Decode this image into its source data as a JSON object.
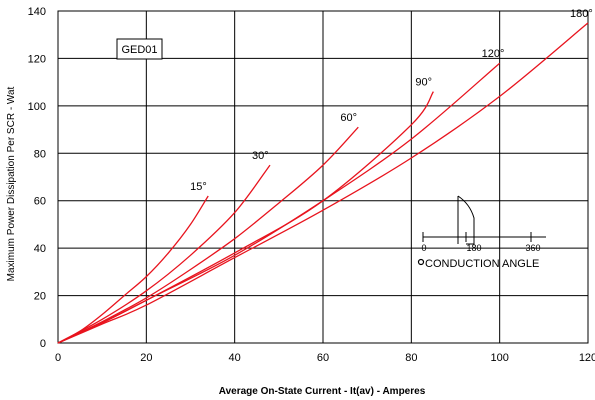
{
  "chart_data": {
    "type": "line",
    "xlabel": "Average On-State Current - It(av) - Amperes",
    "ylabel": "Maximum Power Dissipation Per SCR - Wat",
    "xlim": [
      0,
      120
    ],
    "ylim": [
      0,
      140
    ],
    "x_ticks": [
      "0",
      "20",
      "40",
      "60",
      "80",
      "100",
      "120"
    ],
    "y_ticks": [
      "0",
      "20",
      "40",
      "60",
      "80",
      "100",
      "120",
      "140"
    ],
    "grid": true,
    "series": [
      {
        "name": "15°",
        "x": [
          0,
          5,
          10,
          15,
          20,
          25,
          30,
          34
        ],
        "y": [
          0,
          5,
          12,
          20,
          28,
          38,
          50,
          62
        ]
      },
      {
        "name": "30°",
        "x": [
          0,
          10,
          20,
          30,
          40,
          48
        ],
        "y": [
          0,
          10,
          22,
          37,
          55,
          75
        ]
      },
      {
        "name": "60°",
        "x": [
          0,
          10,
          20,
          30,
          40,
          50,
          60,
          68
        ],
        "y": [
          0,
          9,
          19,
          31,
          44,
          59,
          75,
          91
        ]
      },
      {
        "name": "90°",
        "x": [
          0,
          10,
          20,
          40,
          60,
          80,
          85
        ],
        "y": [
          0,
          8.5,
          18,
          38,
          60,
          92,
          106
        ]
      },
      {
        "name": "120°",
        "x": [
          0,
          10,
          20,
          40,
          60,
          80,
          100
        ],
        "y": [
          0,
          8.5,
          18,
          37,
          60,
          86,
          118
        ]
      },
      {
        "name": "180°",
        "x": [
          0,
          10,
          20,
          40,
          60,
          80,
          100,
          120
        ],
        "y": [
          0,
          8,
          16,
          36,
          56,
          78,
          104,
          135
        ]
      }
    ],
    "annotations": {
      "badge": "GED01",
      "inset_title": "CONDUCTION ANGLE",
      "inset_ticks": [
        "0",
        "180",
        "360"
      ]
    },
    "line_color": "#e8141e",
    "grid_color": "#000000"
  }
}
